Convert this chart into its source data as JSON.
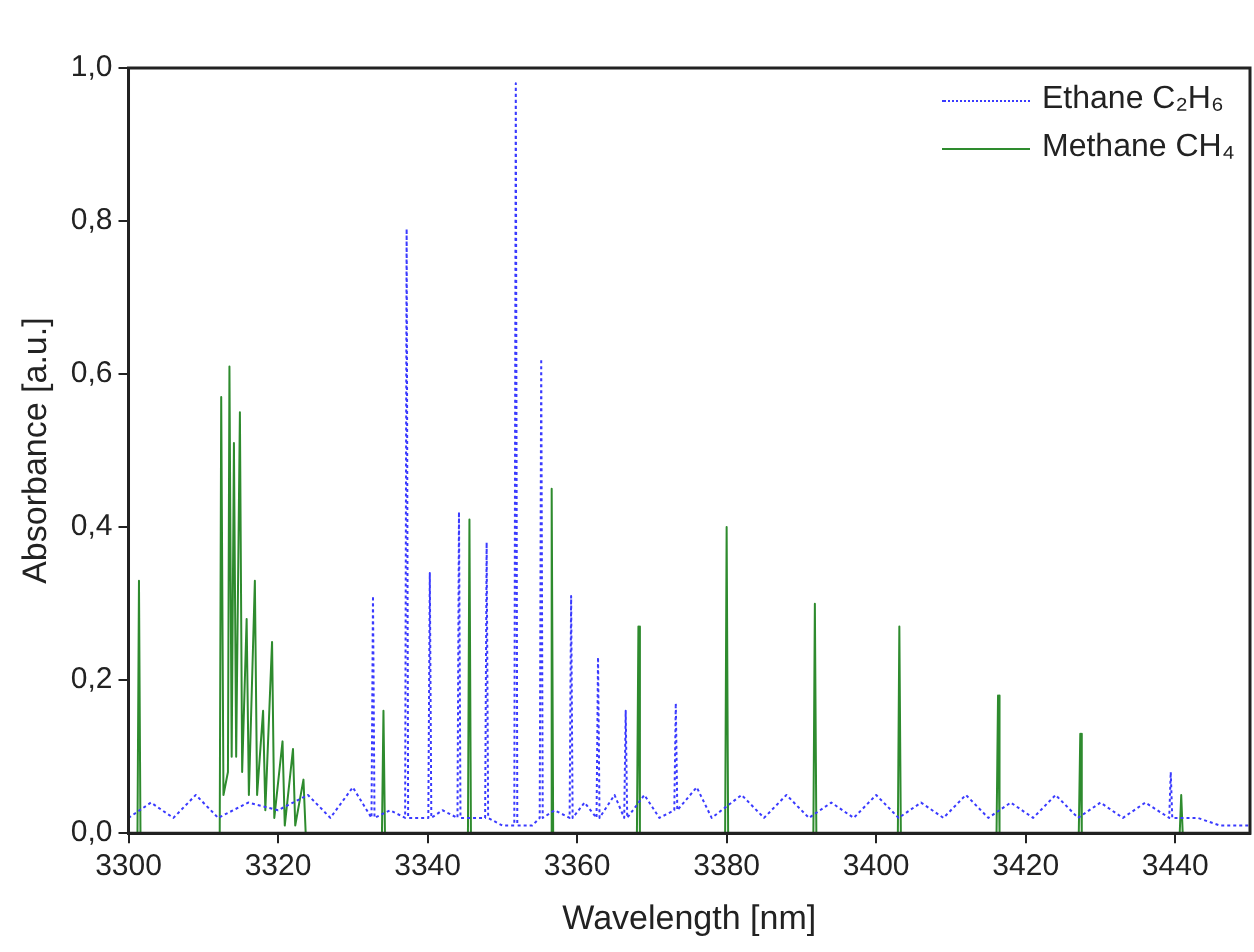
{
  "chart_data": {
    "type": "line",
    "xlabel": "Wavelength [nm]",
    "ylabel": "Absorbance [a.u.]",
    "xlim": [
      3300,
      3450
    ],
    "xticks": [
      3300,
      3320,
      3340,
      3360,
      3380,
      3400,
      3420,
      3440
    ],
    "ylim": [
      0,
      1
    ],
    "yticks": [
      {
        "value": 0,
        "label": "0,0"
      },
      {
        "value": 0.2,
        "label": "0,2"
      },
      {
        "value": 0.4,
        "label": "0,4"
      },
      {
        "value": 0.6,
        "label": "0,6"
      },
      {
        "value": 0.8,
        "label": "0,8"
      },
      {
        "value": 1,
        "label": "1,0"
      }
    ],
    "grid": false,
    "legend": "top right",
    "marker": "none",
    "series": [
      {
        "name": "Ethane C₂H₆",
        "color": "#3a3aff",
        "line_style": "dotted",
        "x": [
          3300,
          3303,
          3306,
          3309,
          3312,
          3316,
          3320,
          3324,
          3327,
          3330,
          3332.5,
          3332.7,
          3332.9,
          3335,
          3337,
          3337.2,
          3337.4,
          3340.1,
          3340.3,
          3340.5,
          3342,
          3344,
          3344.2,
          3344.4,
          3346,
          3347.7,
          3347.9,
          3348.1,
          3350,
          3351.6,
          3351.8,
          3352,
          3354,
          3355,
          3355.2,
          3355.4,
          3357,
          3359,
          3359.2,
          3359.4,
          3361,
          3362.6,
          3362.8,
          3363,
          3365,
          3366.3,
          3366.5,
          3366.7,
          3369,
          3371,
          3373,
          3373.2,
          3373.4,
          3376,
          3378,
          3382,
          3385,
          3388,
          3391,
          3394,
          3397,
          3400,
          3403,
          3406,
          3409,
          3412,
          3415,
          3418,
          3421,
          3424,
          3427,
          3430,
          3433,
          3436,
          3439.2,
          3439.4,
          3439.6,
          3443,
          3446,
          3450
        ],
        "values": [
          0.02,
          0.04,
          0.02,
          0.05,
          0.02,
          0.04,
          0.03,
          0.05,
          0.02,
          0.06,
          0.02,
          0.31,
          0.02,
          0.03,
          0.02,
          0.79,
          0.02,
          0.02,
          0.34,
          0.02,
          0.03,
          0.02,
          0.42,
          0.02,
          0.02,
          0.02,
          0.38,
          0.02,
          0.01,
          0.01,
          0.98,
          0.01,
          0.01,
          0.02,
          0.62,
          0.02,
          0.03,
          0.02,
          0.31,
          0.02,
          0.04,
          0.02,
          0.23,
          0.02,
          0.05,
          0.02,
          0.16,
          0.02,
          0.05,
          0.02,
          0.03,
          0.17,
          0.03,
          0.06,
          0.02,
          0.05,
          0.02,
          0.05,
          0.02,
          0.04,
          0.02,
          0.05,
          0.02,
          0.04,
          0.02,
          0.05,
          0.02,
          0.04,
          0.02,
          0.05,
          0.02,
          0.04,
          0.02,
          0.04,
          0.02,
          0.08,
          0.02,
          0.02,
          0.01,
          0.01
        ]
      },
      {
        "name": "Methane CH₄",
        "color": "#2e8b2e",
        "line_style": "solid",
        "x": [
          3300,
          3301.2,
          3301.4,
          3301.6,
          3312.2,
          3312.4,
          3312.7,
          3313.3,
          3313.5,
          3313.8,
          3314.1,
          3314.4,
          3314.9,
          3315.2,
          3315.8,
          3316.1,
          3316.9,
          3317.2,
          3318,
          3318.3,
          3319.2,
          3319.5,
          3320.6,
          3320.9,
          3322,
          3322.3,
          3323.4,
          3323.7,
          3333.9,
          3334.1,
          3334.3,
          3345.4,
          3345.6,
          3345.8,
          3356.4,
          3356.6,
          3356.8,
          3368,
          3368.2,
          3368.4,
          3379.8,
          3380,
          3380.2,
          3391.6,
          3391.8,
          3392,
          3402.9,
          3403.1,
          3403.3,
          3416.1,
          3416.3,
          3416.5,
          3427.1,
          3427.3,
          3427.5,
          3440.6,
          3440.8,
          3441
        ],
        "values": [
          0,
          0,
          0.33,
          0,
          0,
          0.57,
          0.05,
          0.08,
          0.61,
          0.1,
          0.51,
          0.1,
          0.55,
          0.08,
          0.28,
          0.05,
          0.33,
          0.05,
          0.16,
          0.03,
          0.25,
          0.02,
          0.12,
          0.01,
          0.11,
          0.01,
          0.07,
          0,
          0,
          0.16,
          0,
          0,
          0.41,
          0,
          0,
          0.45,
          0,
          0,
          0.27,
          0,
          0,
          0.4,
          0,
          0,
          0.3,
          0,
          0,
          0.27,
          0,
          0,
          0.18,
          0,
          0,
          0.13,
          0,
          0,
          0.05,
          0
        ]
      }
    ]
  }
}
